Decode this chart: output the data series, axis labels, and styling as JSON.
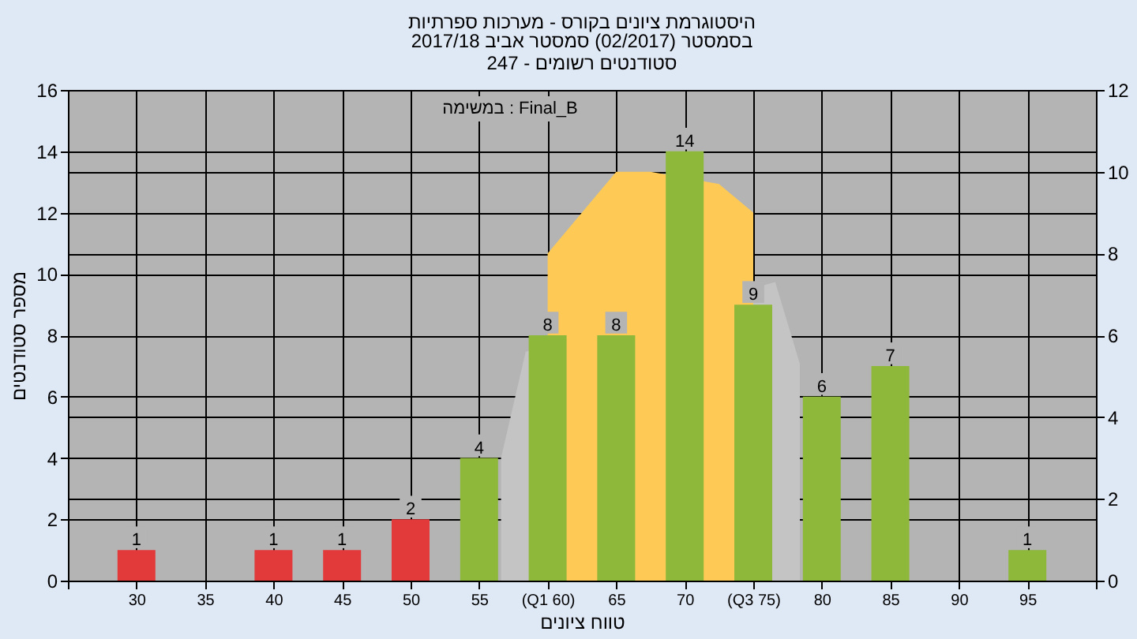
{
  "chart_data": {
    "type": "bar",
    "title": "היסטוגרמת ציונים בקורס - מערכות ספרתיות",
    "subtitle": [
      "בסמסטר  (02/2017)  סמסטר אביב 2017/18",
      "סטודנטים רשומים - 247"
    ],
    "xlabel": "טווח ציונים",
    "ylabel": "מספר סטודנטים",
    "annotations": [
      "במשימה : Final_B"
    ],
    "x": [
      30,
      35,
      40,
      45,
      50,
      55,
      60,
      65,
      70,
      75,
      80,
      85,
      90,
      95
    ],
    "xlim": [
      25,
      100
    ],
    "xticks": [
      {
        "value": 25,
        "label": null
      },
      30,
      35,
      40,
      45,
      50,
      55,
      {
        "value": 60,
        "label": "(Q1 60)"
      },
      65,
      70,
      {
        "value": 75,
        "label": "(Q3 75)"
      },
      80,
      85,
      90,
      95,
      {
        "value": 100,
        "label": null
      }
    ],
    "ylim": [
      0,
      16
    ],
    "yticks": [
      0,
      2,
      4,
      6,
      8,
      10,
      12,
      14,
      16
    ],
    "y2lim": [
      0,
      12
    ],
    "y2ticks": [
      0,
      2,
      4,
      6,
      8,
      10,
      12
    ],
    "series": [
      {
        "type": "area",
        "axis": "y2",
        "color": "#c4c4c4",
        "x": [
          56.6,
          58.4,
          76.6,
          78.4
        ],
        "values": [
          3,
          5.6,
          7.3,
          5.3
        ]
      },
      {
        "type": "area",
        "axis": "y2",
        "color": "#ffc955",
        "x": [
          60,
          65,
          67.5,
          72.5,
          75
        ],
        "values": [
          8,
          10,
          10,
          9.7,
          9
        ]
      },
      {
        "values": [
          1,
          0,
          1,
          1,
          2,
          4,
          8,
          8,
          14,
          9,
          6,
          7,
          0,
          1
        ],
        "colors": [
          "#e23a3a",
          "#8db83a",
          "#e23a3a",
          "#e23a3a",
          "#e23a3a",
          "#8db83a",
          "#8db83a",
          "#8db83a",
          "#8db83a",
          "#8db83a",
          "#8db83a",
          "#8db83a",
          "#8db83a",
          "#8db83a"
        ],
        "value_labels": [
          "1",
          null,
          "1",
          "1",
          "2",
          "4",
          "8",
          "8",
          "14",
          "9",
          "6",
          "7",
          null,
          "1"
        ]
      }
    ],
    "grid": true
  }
}
